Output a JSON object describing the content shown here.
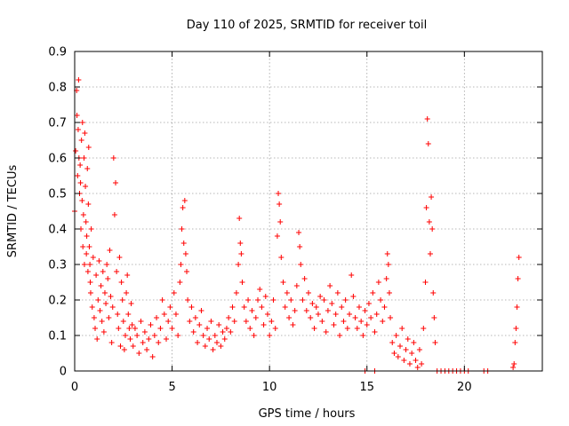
{
  "chart_data": {
    "type": "scatter",
    "title": "Day 110 of 2025, SRMTID for receiver toil",
    "xlabel": "GPS time / hours",
    "ylabel": "SRMTID / TECUs",
    "xlim": [
      0,
      24
    ],
    "ylim": [
      0,
      0.9
    ],
    "xticks": [
      0,
      5,
      10,
      15,
      20
    ],
    "yticks": [
      0,
      0.1,
      0.2,
      0.3,
      0.4,
      0.5,
      0.6,
      0.7,
      0.8,
      0.9
    ],
    "xtick_labels": [
      "0",
      "5",
      "10",
      "15",
      "20"
    ],
    "ytick_labels": [
      "0",
      "0.1",
      "0.2",
      "0.3",
      "0.4",
      "0.5",
      "0.6",
      "0.7",
      "0.8",
      "0.9"
    ],
    "grid": true,
    "marker": "+",
    "color": "#ff0000",
    "series": [
      {
        "name": "SRMTID",
        "x": [
          0.0,
          0.05,
          0.1,
          0.12,
          0.15,
          0.18,
          0.2,
          0.22,
          0.25,
          0.28,
          0.3,
          0.32,
          0.35,
          0.38,
          0.4,
          0.42,
          0.45,
          0.48,
          0.5,
          0.52,
          0.55,
          0.58,
          0.6,
          0.62,
          0.65,
          0.68,
          0.7,
          0.72,
          0.75,
          0.78,
          0.8,
          0.82,
          0.85,
          0.9,
          0.95,
          1.0,
          1.05,
          1.1,
          1.15,
          1.2,
          1.25,
          1.3,
          1.35,
          1.4,
          1.45,
          1.5,
          1.55,
          1.6,
          1.65,
          1.7,
          1.75,
          1.8,
          1.85,
          1.9,
          1.95,
          2.0,
          2.05,
          2.1,
          2.15,
          2.2,
          2.25,
          2.3,
          2.35,
          2.4,
          2.45,
          2.5,
          2.55,
          2.6,
          2.65,
          2.7,
          2.75,
          2.8,
          2.85,
          2.9,
          2.95,
          3.0,
          3.1,
          3.2,
          3.3,
          3.4,
          3.5,
          3.6,
          3.7,
          3.8,
          3.9,
          4.0,
          4.1,
          4.2,
          4.3,
          4.4,
          4.5,
          4.6,
          4.7,
          4.8,
          4.9,
          5.0,
          5.1,
          5.2,
          5.3,
          5.4,
          5.45,
          5.5,
          5.55,
          5.6,
          5.65,
          5.7,
          5.75,
          5.8,
          5.9,
          6.0,
          6.1,
          6.2,
          6.3,
          6.4,
          6.5,
          6.6,
          6.7,
          6.8,
          6.9,
          7.0,
          7.1,
          7.2,
          7.3,
          7.4,
          7.5,
          7.6,
          7.7,
          7.8,
          7.9,
          8.0,
          8.1,
          8.2,
          8.3,
          8.4,
          8.45,
          8.5,
          8.55,
          8.6,
          8.7,
          8.8,
          8.9,
          9.0,
          9.1,
          9.2,
          9.3,
          9.4,
          9.5,
          9.6,
          9.7,
          9.8,
          9.9,
          10.0,
          10.1,
          10.2,
          10.3,
          10.4,
          10.45,
          10.5,
          10.55,
          10.6,
          10.7,
          10.8,
          10.9,
          11.0,
          11.1,
          11.2,
          11.3,
          11.4,
          11.5,
          11.55,
          11.6,
          11.7,
          11.8,
          11.9,
          12.0,
          12.1,
          12.2,
          12.3,
          12.4,
          12.5,
          12.6,
          12.7,
          12.8,
          12.9,
          13.0,
          13.1,
          13.2,
          13.3,
          13.4,
          13.5,
          13.6,
          13.7,
          13.8,
          13.9,
          14.0,
          14.1,
          14.2,
          14.3,
          14.4,
          14.5,
          14.6,
          14.7,
          14.8,
          14.9,
          15.0,
          15.1,
          15.2,
          15.3,
          15.4,
          15.5,
          15.6,
          15.7,
          15.8,
          15.9,
          16.0,
          16.05,
          16.1,
          16.15,
          16.2,
          16.3,
          16.4,
          16.5,
          16.6,
          16.7,
          16.8,
          16.9,
          17.0,
          17.1,
          17.2,
          17.3,
          17.4,
          17.5,
          17.6,
          17.7,
          17.8,
          17.9,
          18.0,
          18.05,
          18.1,
          18.15,
          18.2,
          18.25,
          18.3,
          18.35,
          18.4,
          18.45,
          18.5,
          14.9,
          15.4,
          18.6,
          18.8,
          19.0,
          19.2,
          19.4,
          19.6,
          19.8,
          20.0,
          20.2,
          21.0,
          21.2,
          22.5,
          22.55,
          22.6,
          22.65,
          22.7,
          22.75,
          22.8
        ],
        "y": [
          0.45,
          0.62,
          0.79,
          0.72,
          0.55,
          0.68,
          0.82,
          0.6,
          0.5,
          0.58,
          0.53,
          0.4,
          0.65,
          0.48,
          0.7,
          0.35,
          0.44,
          0.6,
          0.3,
          0.67,
          0.52,
          0.42,
          0.33,
          0.38,
          0.57,
          0.28,
          0.47,
          0.63,
          0.35,
          0.3,
          0.25,
          0.22,
          0.4,
          0.18,
          0.32,
          0.15,
          0.12,
          0.27,
          0.09,
          0.2,
          0.31,
          0.17,
          0.24,
          0.14,
          0.28,
          0.11,
          0.22,
          0.19,
          0.3,
          0.26,
          0.15,
          0.34,
          0.21,
          0.08,
          0.18,
          0.6,
          0.44,
          0.53,
          0.28,
          0.16,
          0.12,
          0.32,
          0.07,
          0.25,
          0.2,
          0.14,
          0.06,
          0.1,
          0.22,
          0.27,
          0.16,
          0.12,
          0.09,
          0.19,
          0.13,
          0.07,
          0.12,
          0.1,
          0.05,
          0.14,
          0.08,
          0.11,
          0.06,
          0.09,
          0.13,
          0.04,
          0.1,
          0.15,
          0.08,
          0.12,
          0.2,
          0.16,
          0.09,
          0.14,
          0.18,
          0.12,
          0.22,
          0.16,
          0.1,
          0.25,
          0.3,
          0.4,
          0.46,
          0.36,
          0.48,
          0.33,
          0.28,
          0.2,
          0.14,
          0.18,
          0.11,
          0.15,
          0.08,
          0.13,
          0.17,
          0.1,
          0.07,
          0.12,
          0.09,
          0.14,
          0.06,
          0.1,
          0.08,
          0.13,
          0.07,
          0.11,
          0.09,
          0.12,
          0.15,
          0.11,
          0.18,
          0.14,
          0.22,
          0.3,
          0.43,
          0.36,
          0.33,
          0.25,
          0.18,
          0.14,
          0.2,
          0.12,
          0.17,
          0.1,
          0.15,
          0.2,
          0.23,
          0.18,
          0.13,
          0.21,
          0.16,
          0.1,
          0.14,
          0.2,
          0.12,
          0.38,
          0.5,
          0.47,
          0.42,
          0.32,
          0.25,
          0.18,
          0.22,
          0.15,
          0.2,
          0.13,
          0.17,
          0.24,
          0.39,
          0.35,
          0.3,
          0.2,
          0.26,
          0.17,
          0.22,
          0.15,
          0.19,
          0.12,
          0.18,
          0.16,
          0.21,
          0.14,
          0.2,
          0.11,
          0.17,
          0.24,
          0.19,
          0.13,
          0.16,
          0.22,
          0.1,
          0.18,
          0.14,
          0.2,
          0.12,
          0.16,
          0.27,
          0.21,
          0.15,
          0.12,
          0.18,
          0.14,
          0.1,
          0.17,
          0.13,
          0.19,
          0.15,
          0.22,
          0.11,
          0.16,
          0.25,
          0.2,
          0.14,
          0.18,
          0.26,
          0.33,
          0.3,
          0.22,
          0.15,
          0.08,
          0.05,
          0.1,
          0.04,
          0.07,
          0.12,
          0.03,
          0.06,
          0.09,
          0.02,
          0.05,
          0.08,
          0.03,
          0.01,
          0.06,
          0.02,
          0.12,
          0.25,
          0.46,
          0.71,
          0.64,
          0.42,
          0.33,
          0.49,
          0.4,
          0.22,
          0.15,
          0.08,
          0.0,
          0.0,
          0.0,
          0.0,
          0.0,
          0.0,
          0.0,
          0.0,
          0.0,
          0.0,
          0.0,
          0.0,
          0.0,
          0.01,
          0.02,
          0.08,
          0.12,
          0.18,
          0.26,
          0.32
        ]
      }
    ]
  }
}
